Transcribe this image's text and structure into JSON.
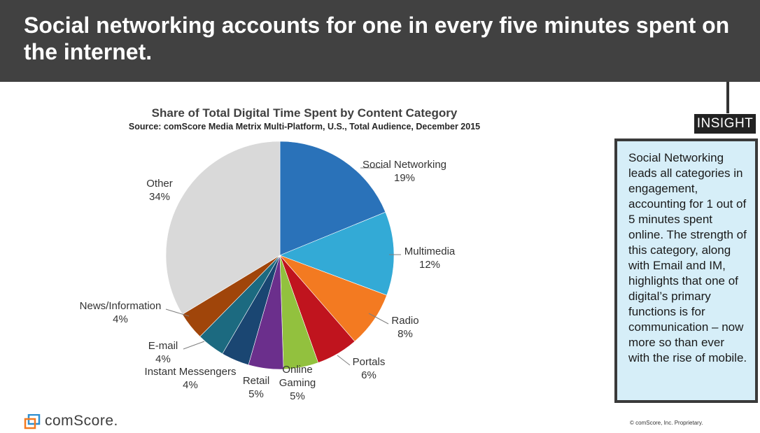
{
  "header": {
    "title": "Social networking accounts for one in every five minutes spent on the internet."
  },
  "insight": {
    "tag": "INSIGHT",
    "text": "Social Networking leads all categories in engagement, accounting for 1 out of 5 minutes spent online. The strength of this category, along with Email and IM, highlights that one of digital’s primary functions is for communication – now more so than ever with the rise of mobile."
  },
  "chart_data": {
    "type": "pie",
    "title": "Share of Total Digital Time Spent by Content Category",
    "subtitle": "Source: comScore Media Metrix Multi-Platform, U.S., Total Audience, December 2015",
    "slices": [
      {
        "label": "Social Networking",
        "value": 19,
        "value_label": "19%",
        "color": "#2a72b9"
      },
      {
        "label": "Multimedia",
        "value": 12,
        "value_label": "12%",
        "color": "#33aad6"
      },
      {
        "label": "Radio",
        "value": 8,
        "value_label": "8%",
        "color": "#f37a21"
      },
      {
        "label": "Portals",
        "value": 6,
        "value_label": "6%",
        "color": "#c0141e"
      },
      {
        "label": "Online Gaming",
        "value": 5,
        "value_label": "5%",
        "color": "#92c13e"
      },
      {
        "label": "Retail",
        "value": 5,
        "value_label": "5%",
        "color": "#6b2f8c"
      },
      {
        "label": "Instant Messengers",
        "value": 4,
        "value_label": "4%",
        "color": "#1a4672"
      },
      {
        "label": "E-mail",
        "value": 4,
        "value_label": "4%",
        "color": "#1c6a80"
      },
      {
        "label": "News/Information",
        "value": 4,
        "value_label": "4%",
        "color": "#a0450a"
      },
      {
        "label": "Other",
        "value": 34,
        "value_label": "34%",
        "color": "#d9d9d9"
      }
    ]
  },
  "footer": {
    "logo_text": "comScore.",
    "copyright": "© comScore, Inc. Proprietary."
  }
}
